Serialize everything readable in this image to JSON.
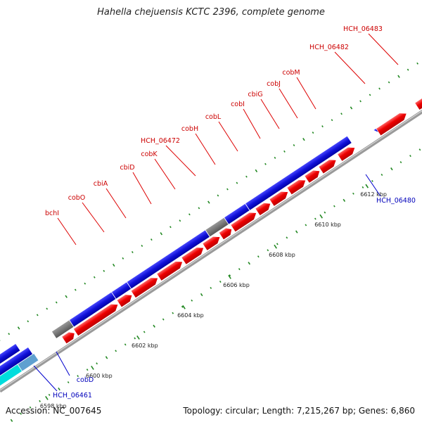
{
  "title": "Hahella chejuensis KCTC 2396, complete genome",
  "footer": {
    "accession": "Accession: NC_007645",
    "topology": "Topology: circular; Length: 7,215,267 bp; Genes: 6,860"
  },
  "colors": {
    "forward_gene": "#ee0000",
    "reverse_gene": "#1010d8",
    "forward_label": "#cc0000",
    "reverse_label": "#0000bb",
    "grey_gene": "#777777",
    "cyan_gene": "#00dddd",
    "tick_dots": "#228822",
    "backbone": "#9a9a9a"
  },
  "scale_labels": [
    "6598 kbp",
    "6600 kbp",
    "6602 kbp",
    "6604 kbp",
    "6606 kbp",
    "6608 kbp",
    "6610 kbp",
    "6612 kbp"
  ],
  "gene_labels": {
    "forward": [
      "bchI",
      "cobO",
      "cbiA",
      "cbiD",
      "cobK",
      "HCH_06472",
      "cobH",
      "cobL",
      "cobI",
      "cbiG",
      "cobJ",
      "cobM",
      "HCH_06482",
      "HCH_06483"
    ],
    "reverse": [
      "cobD",
      "HCH_06461",
      "HCH_06480"
    ]
  }
}
